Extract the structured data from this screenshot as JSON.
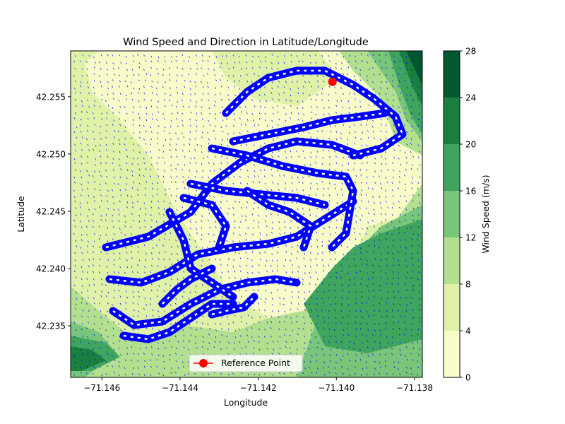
{
  "chart_data": {
    "type": "contourf+quiver",
    "title": "Wind Speed and Direction in Latitude/Longitude",
    "xlabel": "Longitude",
    "ylabel": "Latitude",
    "xlim": [
      -71.1468,
      -71.1378
    ],
    "ylim": [
      42.2305,
      42.259
    ],
    "x_ticks": [
      -71.146,
      -71.144,
      -71.142,
      -71.14,
      -71.138
    ],
    "x_tick_labels": [
      "−71.146",
      "−71.144",
      "−71.142",
      "−71.140",
      "−71.138"
    ],
    "y_ticks": [
      42.235,
      42.24,
      42.245,
      42.25,
      42.255
    ],
    "y_tick_labels": [
      "42.235",
      "42.240",
      "42.245",
      "42.250",
      "42.255"
    ],
    "colorbar": {
      "label": "Wind Speed (m/s)",
      "levels": [
        0,
        4,
        8,
        12,
        16,
        20,
        24,
        28
      ],
      "tick_labels": [
        "0",
        "4",
        "8",
        "12",
        "16",
        "20",
        "24",
        "28"
      ],
      "colors": [
        "#f7fcc9",
        "#dff2a8",
        "#b3e08f",
        "#79c57a",
        "#3fa45d",
        "#1a8040",
        "#04582f"
      ]
    },
    "reference_point": {
      "label": "Reference Point",
      "lon": -71.1401,
      "lat": 42.2563,
      "color": "#ff0000"
    },
    "arrow_color": "#0000ff",
    "legend": {
      "placement": "lower center"
    },
    "grid": false
  }
}
